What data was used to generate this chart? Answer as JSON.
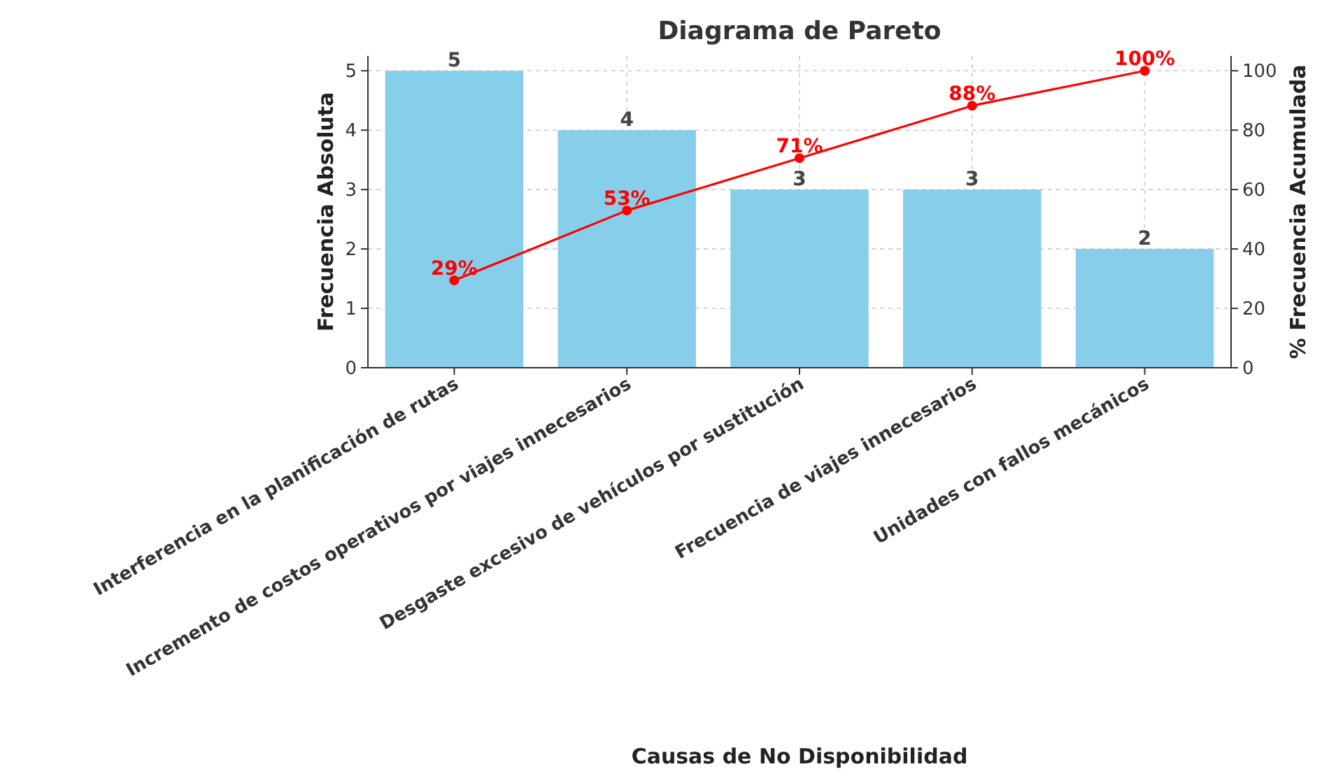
{
  "chart_data": {
    "type": "bar",
    "title": "Diagrama de Pareto",
    "xlabel": "Causas de No Disponibilidad",
    "ylabel": "Frecuencia Absoluta",
    "y2label": "% Frecuencia Acumulada",
    "categories": [
      "Interferencia en la planificación de rutas",
      "Incremento de costos operativos por viajes innecesarios",
      "Desgaste excesivo de vehículos por sustitución",
      "Frecuencia de viajes innecesarios",
      "Unidades con fallos mecánicos"
    ],
    "series": [
      {
        "color": "#87ceeb",
        "values": [
          5,
          4,
          3,
          3,
          2
        ],
        "value_labels": [
          "5",
          "4",
          "3",
          "3",
          "2"
        ]
      },
      {
        "type": "line",
        "axis": "y2",
        "color": "#ff0000",
        "values": [
          29.41,
          52.94,
          70.59,
          88.24,
          100
        ],
        "value_labels": [
          "29%",
          "53%",
          "71%",
          "88%",
          "100%"
        ]
      }
    ],
    "ylim": [
      0,
      5.25
    ],
    "yticks": [
      0,
      1,
      2,
      3,
      4,
      5
    ],
    "y2lim": [
      0,
      105
    ],
    "y2ticks": [
      0,
      20,
      40,
      60,
      80,
      100
    ],
    "grid": true,
    "marker": "circle",
    "line_style": "solid"
  }
}
